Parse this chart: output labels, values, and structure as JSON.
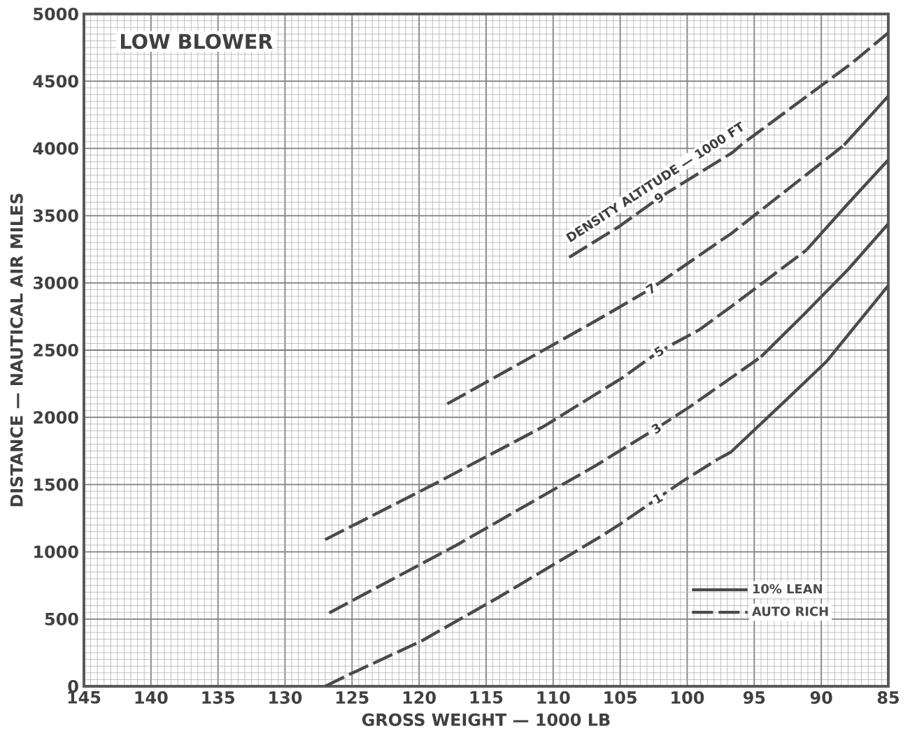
{
  "chart_data": {
    "type": "line",
    "xlabel": "GROSS WEIGHT — 1000 LB",
    "ylabel": "DISTANCE — NAUTICAL AIR MILES",
    "xlim": [
      145,
      85
    ],
    "ylim": [
      0,
      5000
    ],
    "xticks": [
      145,
      140,
      135,
      130,
      125,
      120,
      115,
      110,
      105,
      100,
      95,
      90,
      85
    ],
    "yticks": [
      0,
      500,
      1000,
      1500,
      2000,
      2500,
      3000,
      3500,
      4000,
      4500,
      5000
    ],
    "grid": true,
    "legend": "bottom right",
    "series": [
      {
        "name": "10% LEAN",
        "color": "#4a4a4a",
        "line_style": "solid",
        "x": [
          97.7,
          96.75,
          92.5,
          89.6,
          85,
          null,
          94.5,
          91.3,
          88,
          85,
          null,
          91.1,
          88,
          85,
          null,
          88.3,
          85
        ],
        "values": [
          1690,
          1741,
          2141,
          2417,
          2980,
          null,
          2450,
          2765,
          3100,
          3440,
          null,
          3245,
          3590,
          3915,
          null,
          4025,
          4390
        ]
      },
      {
        "name": "AUTO RICH",
        "color": "#4a4a4a",
        "line_style": "dashed",
        "x": [
          127,
          125.2,
          119.8,
          114.1,
          106.4,
          105,
          102.2,
          100.3,
          97.7,
          null,
          126.7,
          117.2,
          106.9,
          102.3,
          99.8,
          94.5,
          null,
          127,
          118.9,
          110.7,
          104.8,
          102.1,
          99.1,
          96.6,
          91.1,
          null,
          117.9,
          109.4,
          106,
          102.7,
          97.4,
          96.7,
          88.3,
          null,
          108.8,
          105,
          102.1,
          96.6,
          95.9,
          87.7,
          85
        ],
        "values": [
          0,
          88,
          338,
          660,
          1117,
          1206,
          1398,
          1528,
          1690,
          null,
          546,
          1050,
          1637,
          1918,
          2079,
          2450,
          null,
          1091,
          1502,
          1933,
          2297,
          2490,
          2651,
          2833,
          3245,
          null,
          2100,
          2573,
          2765,
          2957,
          3321,
          3368,
          4025,
          null,
          3191,
          3425,
          3633,
          3971,
          4033,
          4636,
          4860
        ]
      }
    ],
    "annotations": [
      "LOW BLOWER",
      "DENSITY ALTITUDE — 1000 FT",
      {
        "text": "9",
        "x": 102.1,
        "y": 3633
      },
      {
        "text": "7",
        "x": 102.7,
        "y": 2957
      },
      {
        "text": "5",
        "x": 102.1,
        "y": 2490
      },
      {
        "text": "3",
        "x": 102.3,
        "y": 1918
      },
      {
        "text": "1",
        "x": 102.2,
        "y": 1398
      }
    ]
  }
}
